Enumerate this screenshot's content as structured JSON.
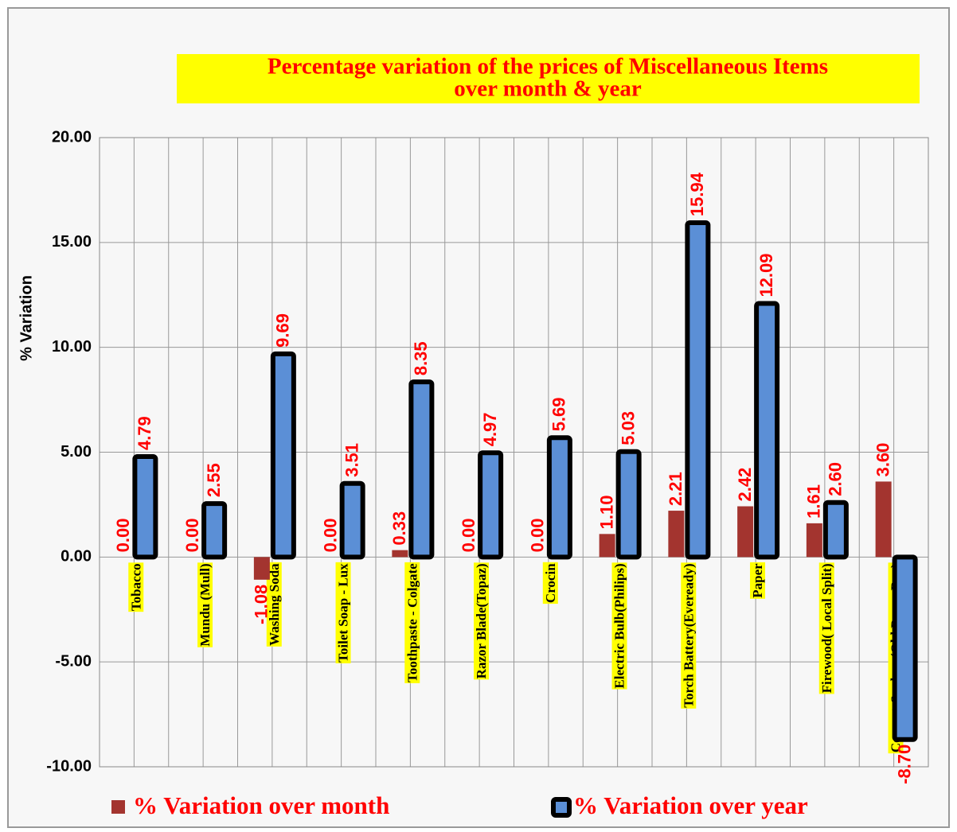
{
  "chart_data": {
    "type": "bar",
    "title": [
      "Percentage variation of the prices of Miscellaneous Items",
      "over month & year"
    ],
    "y_label": "% Variation",
    "categories": [
      "Tobacco",
      "Mundu (Mull)",
      "Washing Soda",
      "Toilet Soap - Lux",
      "Toothpaste - Colgate",
      "Razor Blade(Topaz)",
      "Crocin",
      "Electric Bulb(Philips)",
      "Torch Battery(Eveready)",
      "Paper",
      "Firewood( Local Split)",
      "Cement-Sankar (Old Paper Bag)"
    ],
    "series": [
      {
        "name": "% Variation over month",
        "color": "#a3342f",
        "values": [
          0,
          0,
          -1.08,
          0,
          0.33,
          0,
          0,
          1.1,
          2.21,
          2.42,
          1.61,
          3.6
        ],
        "value_labels": [
          "0.00",
          "0.00",
          "-1.08",
          "0.00",
          "0.33",
          "0.00",
          "0.00",
          "1.10",
          "2.21",
          "2.42",
          "1.61",
          "3.60"
        ]
      },
      {
        "name": "% Variation over year",
        "color": "#5b8fd6",
        "values": [
          4.79,
          2.55,
          9.69,
          3.51,
          8.35,
          4.97,
          5.69,
          5.03,
          15.94,
          12.09,
          2.6,
          -8.7
        ],
        "value_labels": [
          "4.79",
          "2.55",
          "9.69",
          "3.51",
          "8.35",
          "4.97",
          "5.69",
          "5.03",
          "15.94",
          "12.09",
          "2.60",
          "-8.70"
        ]
      }
    ],
    "ylim": [
      -10,
      20
    ],
    "yticks": [
      {
        "value": -10,
        "label": "-10.00"
      },
      {
        "value": -5,
        "label": "-5.00"
      },
      {
        "value": 0,
        "label": "0.00"
      },
      {
        "value": 5,
        "label": "5.00"
      },
      {
        "value": 10,
        "label": "10.00"
      },
      {
        "value": 15,
        "label": "15.00"
      },
      {
        "value": 20,
        "label": "20.00"
      }
    ],
    "grid": true,
    "legend": "bottom"
  }
}
